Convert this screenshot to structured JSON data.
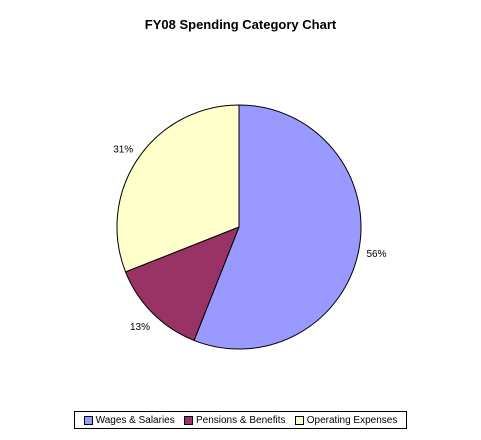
{
  "chart_data": {
    "type": "pie",
    "title": "FY08 Spending Category Chart",
    "categories": [
      "Wages & Salaries",
      "Pensions & Benefits",
      "Operating Expenses"
    ],
    "values": [
      56,
      13,
      31
    ],
    "labels": [
      "56%",
      "13%",
      "31%"
    ],
    "colors": [
      "#9999ff",
      "#993366",
      "#ffffcc"
    ],
    "start_angle_deg": 0,
    "direction": "clockwise",
    "legend_position": "bottom"
  }
}
